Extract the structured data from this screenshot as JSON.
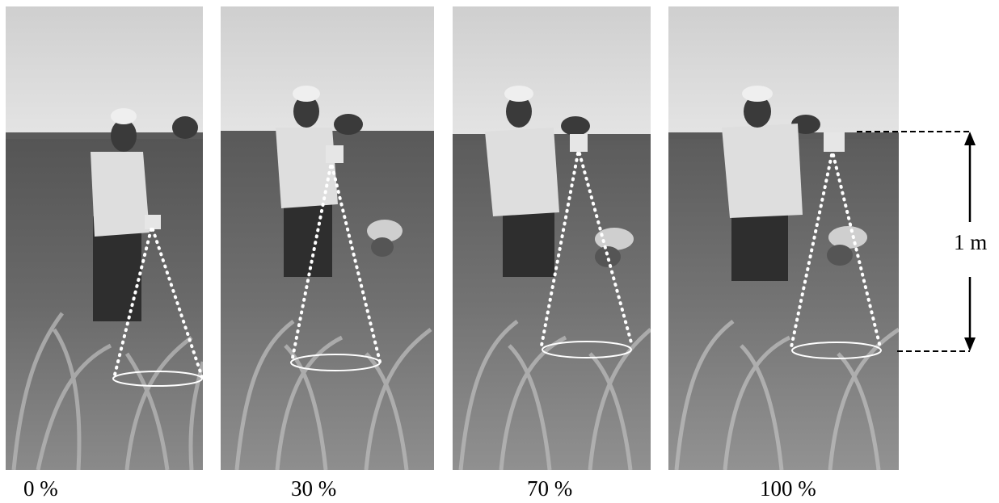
{
  "figure": {
    "panels": [
      {
        "caption": "0 %"
      },
      {
        "caption": "30 %"
      },
      {
        "caption": "70 %"
      },
      {
        "caption": "100 %"
      }
    ],
    "scale_bar": {
      "label": "1 m"
    }
  }
}
